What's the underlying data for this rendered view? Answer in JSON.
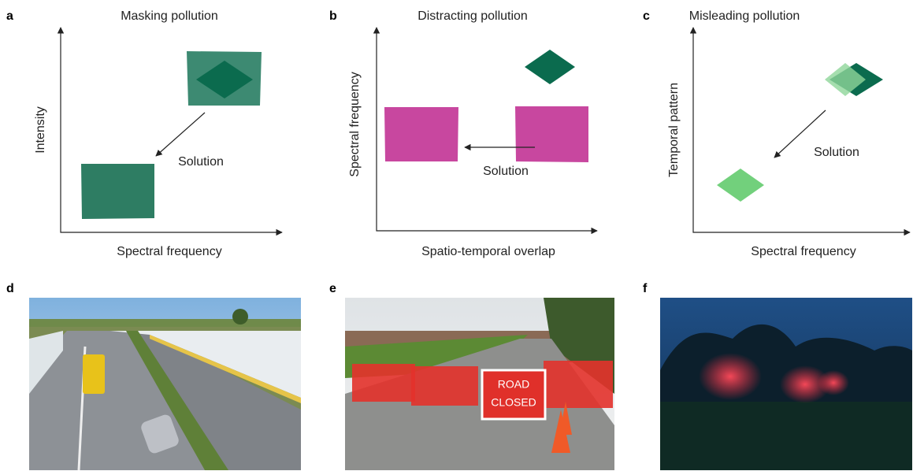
{
  "panels": [
    {
      "label": "a",
      "title": "Masking pollution",
      "x_label": "Spectral frequency",
      "y_label": "Intensity",
      "annotation": "Solution"
    },
    {
      "label": "b",
      "title": "Distracting pollution",
      "x_label": "Spatio-temporal overlap",
      "y_label": "Spectral frequency",
      "annotation": "Solution"
    },
    {
      "label": "c",
      "title": "Misleading pollution",
      "x_label": "Spectral frequency",
      "y_label": "Temporal pattern",
      "annotation": "Solution"
    }
  ],
  "photos": [
    {
      "label": "d"
    },
    {
      "label": "e",
      "sign_text": [
        "ROAD",
        "CLOSED"
      ]
    },
    {
      "label": "f"
    }
  ]
}
